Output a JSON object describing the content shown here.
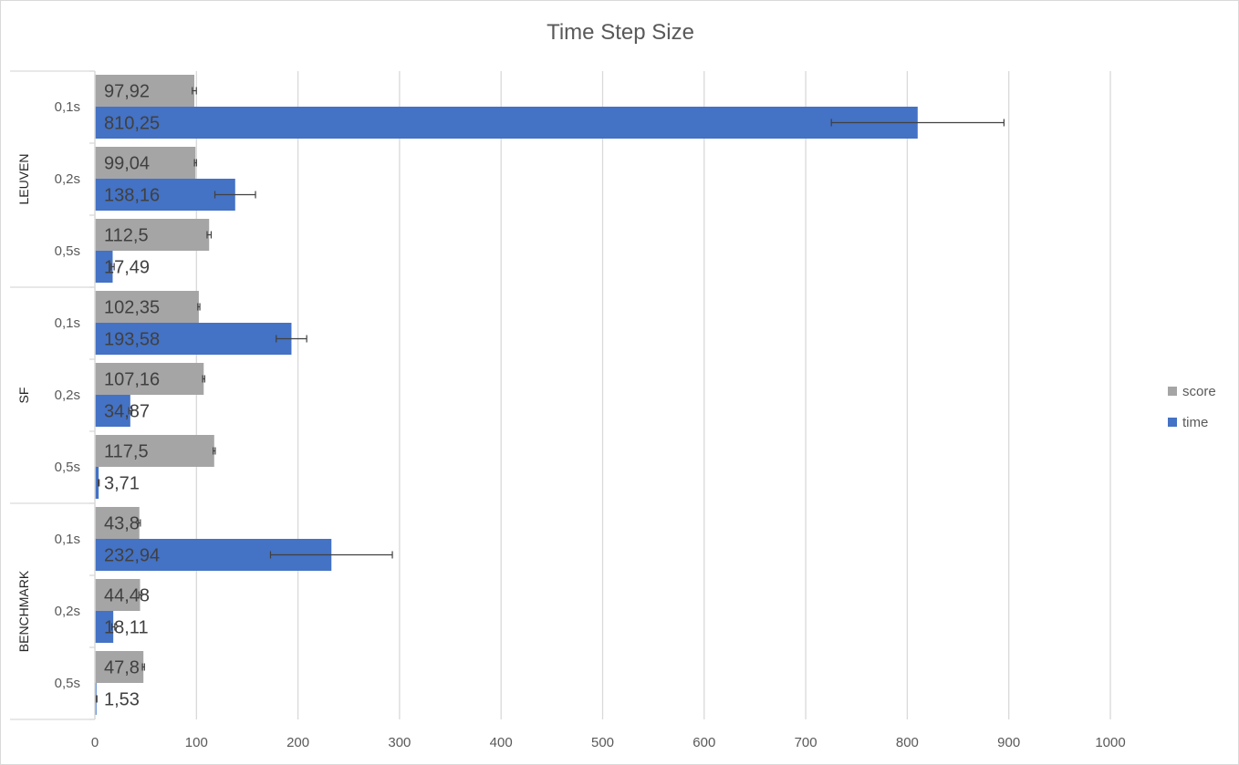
{
  "chart_data": {
    "type": "bar",
    "orientation": "horizontal",
    "title": "Time Step Size",
    "xlabel": "",
    "ylabel": "",
    "xlim": [
      0,
      1000
    ],
    "x_ticks": [
      "0",
      "100",
      "200",
      "300",
      "400",
      "500",
      "600",
      "700",
      "800",
      "900",
      "1000"
    ],
    "grid": true,
    "legend_position": "right",
    "groups": [
      {
        "name": "LEUVEN",
        "categories": [
          {
            "label": "0,1s",
            "score": 97.92,
            "score_label": "97,92",
            "score_err": 2,
            "time": 810.25,
            "time_label": "810,25",
            "time_err": 85
          },
          {
            "label": "0,2s",
            "score": 99.04,
            "score_label": "99,04",
            "score_err": 1,
            "time": 138.16,
            "time_label": "138,16",
            "time_err": 20
          },
          {
            "label": "0,5s",
            "score": 112.5,
            "score_label": "112,5",
            "score_err": 2,
            "time": 17.49,
            "time_label": "17,49",
            "time_err": 1.5
          }
        ]
      },
      {
        "name": "SF",
        "categories": [
          {
            "label": "0,1s",
            "score": 102.35,
            "score_label": "102,35",
            "score_err": 1,
            "time": 193.58,
            "time_label": "193,58",
            "time_err": 15
          },
          {
            "label": "0,2s",
            "score": 107.16,
            "score_label": "107,16",
            "score_err": 1,
            "time": 34.87,
            "time_label": "34,87",
            "time_err": 1.5
          },
          {
            "label": "0,5s",
            "score": 117.5,
            "score_label": "117,5",
            "score_err": 1,
            "time": 3.71,
            "time_label": "3,71",
            "time_err": 0.5
          }
        ]
      },
      {
        "name": "BENCHMARK",
        "categories": [
          {
            "label": "0,1s",
            "score": 43.8,
            "score_label": "43,8",
            "score_err": 1,
            "time": 232.94,
            "time_label": "232,94",
            "time_err": 60
          },
          {
            "label": "0,2s",
            "score": 44.48,
            "score_label": "44,48",
            "score_err": 1,
            "time": 18.11,
            "time_label": "18,11",
            "time_err": 1.5
          },
          {
            "label": "0,5s",
            "score": 47.8,
            "score_label": "47,8",
            "score_err": 1,
            "time": 1.53,
            "time_label": "1,53",
            "time_err": 0.5
          }
        ]
      }
    ],
    "series": [
      {
        "name": "score",
        "color": "#a5a5a5"
      },
      {
        "name": "time",
        "color": "#4472c4"
      }
    ]
  }
}
